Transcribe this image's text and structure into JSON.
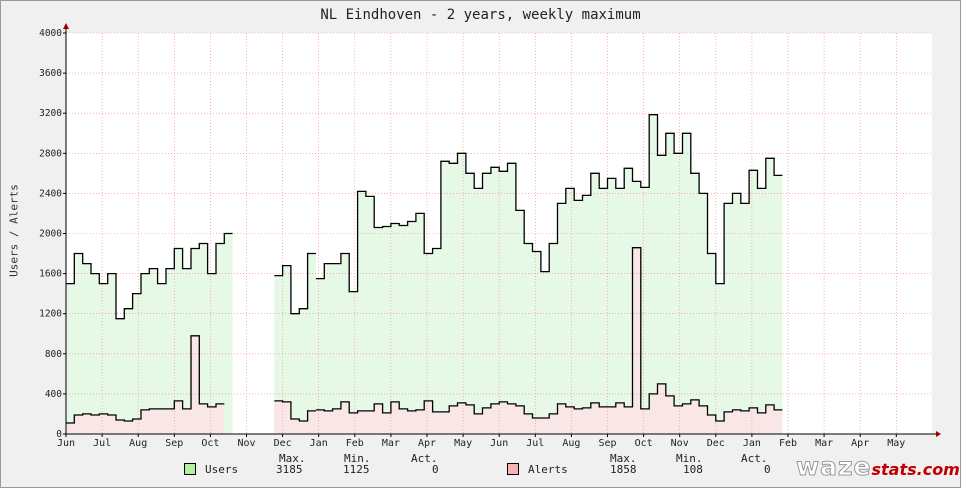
{
  "chart_data": {
    "type": "area",
    "title": "NL Eindhoven - 2 years, weekly maximum",
    "ylabel": "Users / Alerts",
    "ylim": [
      0,
      4000
    ],
    "yticks": [
      0,
      400,
      800,
      1200,
      1600,
      2000,
      2400,
      2800,
      3200,
      3600,
      4000
    ],
    "months": [
      "Jun",
      "Jul",
      "Aug",
      "Sep",
      "Oct",
      "Nov",
      "Dec",
      "Jan",
      "Feb",
      "Mar",
      "Apr",
      "May",
      "Jun",
      "Jul",
      "Aug",
      "Sep",
      "Oct",
      "Nov",
      "Dec",
      "Jan",
      "Feb",
      "Mar",
      "Apr",
      "May"
    ],
    "grid": true,
    "x_axis": "week index (0 = first week of June)",
    "series": [
      {
        "name": "Users",
        "color": "#000000",
        "fill": "#e6f9e6",
        "segments": [
          {
            "start": 0,
            "values": [
              1500,
              1800,
              1700,
              1600,
              1500,
              1600,
              1150,
              1250,
              1400,
              1600,
              1650,
              1500,
              1650,
              1850,
              1650,
              1850,
              1900,
              1600,
              1900,
              2000
            ]
          },
          {
            "start": 25,
            "values": [
              1580,
              1680,
              1200,
              1250,
              1800
            ]
          },
          {
            "start": 30,
            "values": [
              1550,
              1700,
              1700,
              1800,
              1420,
              2420,
              2370,
              2060,
              2070,
              2100,
              2080,
              2120,
              2200,
              1800,
              1850,
              2720,
              2700,
              2800,
              2600,
              2450,
              2600,
              2660,
              2620,
              2700,
              2230,
              1900,
              1820,
              1620,
              1900,
              2300,
              2450,
              2330,
              2380,
              2600,
              2450,
              2550,
              2450,
              2650,
              2520,
              2460,
              3185,
              2780,
              3000,
              2800,
              3000,
              2600,
              2400,
              1800,
              1500,
              2300,
              2400,
              2300,
              2630,
              2450,
              2750,
              2580
            ]
          }
        ]
      },
      {
        "name": "Alerts",
        "color": "#000000",
        "fill": "#f9e6e6",
        "segments": [
          {
            "start": 0,
            "values": [
              110,
              190,
              200,
              190,
              200,
              190,
              140,
              130,
              150,
              240,
              250,
              250,
              250,
              330,
              250,
              980,
              300,
              270,
              300
            ]
          },
          {
            "start": 25,
            "values": [
              330,
              320,
              150,
              130,
              230
            ]
          },
          {
            "start": 30,
            "values": [
              240,
              230,
              250,
              320,
              210,
              230,
              230,
              300,
              210,
              320,
              250,
              230,
              240,
              330,
              220,
              220,
              280,
              310,
              290,
              200,
              260,
              300,
              320,
              300,
              280,
              200,
              160,
              160,
              200,
              300,
              270,
              250,
              260,
              310,
              270,
              270,
              310,
              270,
              1858,
              250,
              400,
              500,
              380,
              280,
              300,
              340,
              280,
              190,
              130,
              220,
              240,
              230,
              260,
              210,
              290,
              240
            ]
          }
        ]
      }
    ]
  },
  "legend": {
    "headers": [
      "Max.",
      "Min.",
      "Act."
    ],
    "items": [
      {
        "name": "Users",
        "max": "3185",
        "min": "1125",
        "act": "0",
        "swatch": "#b4f0a0"
      },
      {
        "name": "Alerts",
        "max": "1858",
        "min": "108",
        "act": "0",
        "swatch": "#f5b4b4"
      }
    ]
  },
  "brand": {
    "part1": "waze",
    "part2": "stats.com"
  }
}
